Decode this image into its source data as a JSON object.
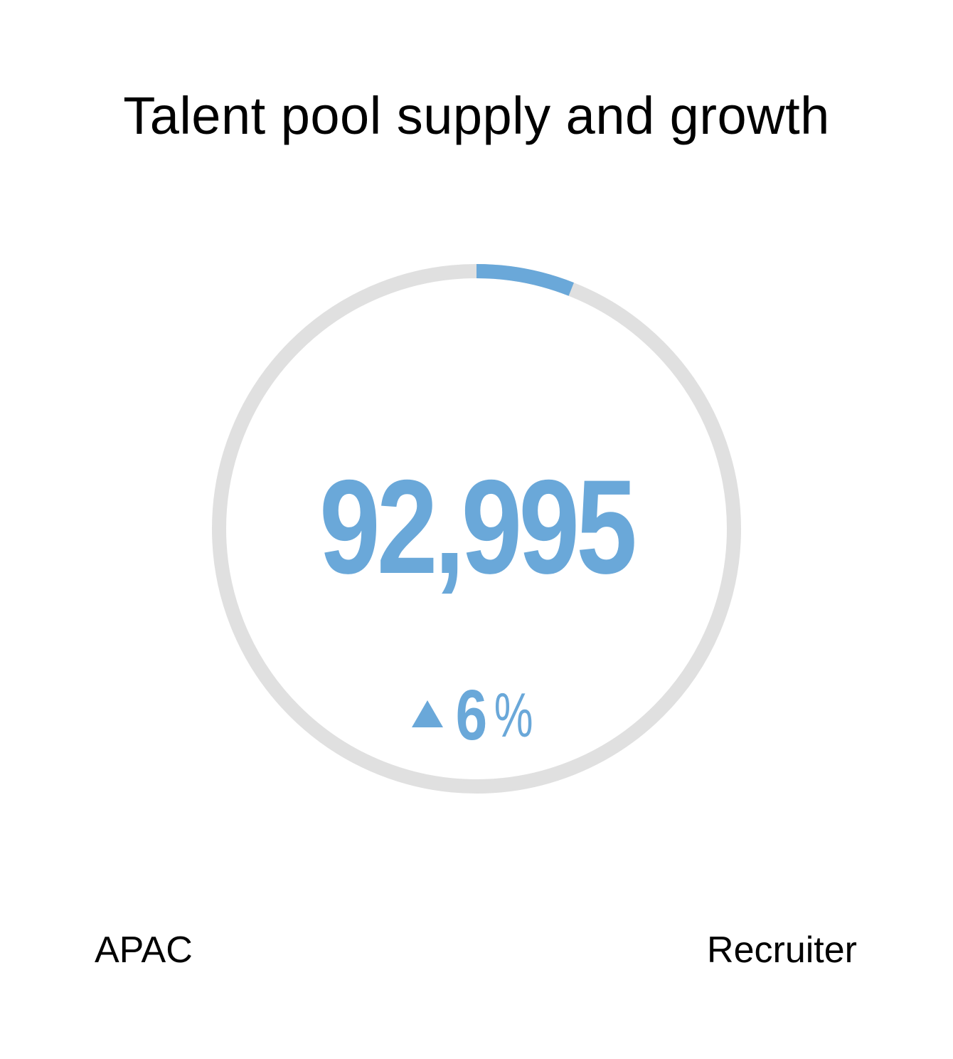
{
  "widget": {
    "title": "Talent pool supply and growth",
    "value": "92,995",
    "progress_fraction": 0.06,
    "growth": {
      "direction_icon": "triangle-up-icon",
      "value": "6",
      "unit": "%"
    },
    "footer": {
      "region": "APAC",
      "role": "Recruiter"
    }
  },
  "colors": {
    "accent": "#6aa8d9",
    "track": "#e0e0e0",
    "text": "#000000"
  }
}
